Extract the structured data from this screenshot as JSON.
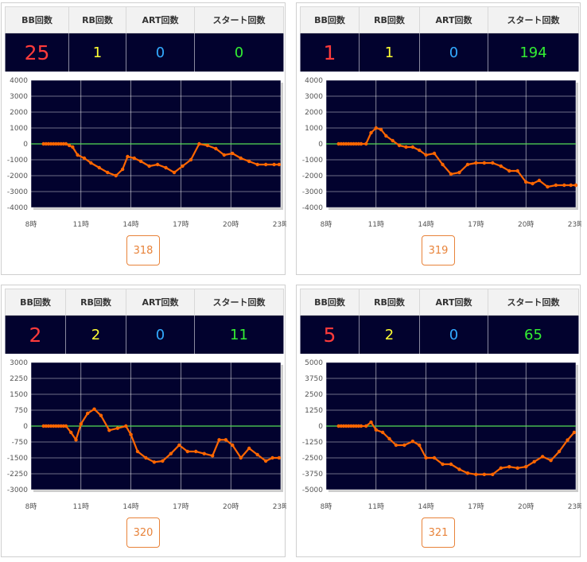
{
  "headers": {
    "bb": "BB回数",
    "rb": "RB回数",
    "art": "ART回数",
    "start": "スタート回数"
  },
  "x_tick_labels": [
    "8時",
    "11時",
    "14時",
    "17時",
    "20時",
    "23時"
  ],
  "colors": {
    "bb": "#ff3b3b",
    "rb": "#ffff33",
    "art": "#33aaff",
    "start": "#33ee33",
    "line": "#ff6600",
    "zero_line": "#55dd55",
    "plot_bg": "#02022e"
  },
  "machines": [
    {
      "number": "318",
      "bb": "25",
      "rb": "1",
      "art": "0",
      "start": "0"
    },
    {
      "number": "319",
      "bb": "1",
      "rb": "1",
      "art": "0",
      "start": "194"
    },
    {
      "number": "320",
      "bb": "2",
      "rb": "2",
      "art": "0",
      "start": "11"
    },
    {
      "number": "321",
      "bb": "5",
      "rb": "2",
      "art": "0",
      "start": "65"
    }
  ],
  "chart_data": [
    {
      "type": "line",
      "machine": "318",
      "xlim": [
        8,
        23
      ],
      "ylim": [
        -4000,
        4000
      ],
      "y_ticks": [
        4000,
        3000,
        2000,
        1000,
        0,
        -1000,
        -2000,
        -3000,
        -4000
      ],
      "x_ticks": [
        8,
        11,
        14,
        17,
        20,
        23
      ],
      "x": [
        8.75,
        8.9,
        9.05,
        9.2,
        9.35,
        9.5,
        9.65,
        9.8,
        9.95,
        10.1,
        10.3,
        10.5,
        10.8,
        11.2,
        11.6,
        12.1,
        12.6,
        13.1,
        13.5,
        13.8,
        14.2,
        14.6,
        15.1,
        15.6,
        16.1,
        16.6,
        17.1,
        17.6,
        18.1,
        18.6,
        19.1,
        19.6,
        20.1,
        20.6,
        21.1,
        21.6,
        22.1,
        22.6,
        22.9
      ],
      "values": [
        0,
        0,
        0,
        0,
        0,
        0,
        0,
        0,
        0,
        0,
        -100,
        -200,
        -700,
        -900,
        -1200,
        -1500,
        -1800,
        -2000,
        -1600,
        -800,
        -900,
        -1100,
        -1400,
        -1300,
        -1500,
        -1800,
        -1400,
        -1000,
        0,
        -100,
        -300,
        -700,
        -600,
        -900,
        -1100,
        -1300,
        -1300,
        -1300,
        -1300
      ]
    },
    {
      "type": "line",
      "machine": "319",
      "xlim": [
        8,
        23
      ],
      "ylim": [
        -4000,
        4000
      ],
      "y_ticks": [
        4000,
        3000,
        2000,
        1000,
        0,
        -1000,
        -2000,
        -3000,
        -4000
      ],
      "x_ticks": [
        8,
        11,
        14,
        17,
        20,
        23
      ],
      "x": [
        8.75,
        8.9,
        9.05,
        9.2,
        9.35,
        9.5,
        9.65,
        9.8,
        9.95,
        10.1,
        10.4,
        10.7,
        11.0,
        11.3,
        11.6,
        12.0,
        12.4,
        12.8,
        13.2,
        13.6,
        14.0,
        14.5,
        15.0,
        15.5,
        16.0,
        16.5,
        17.0,
        17.5,
        18.0,
        18.5,
        19.0,
        19.5,
        20.0,
        20.4,
        20.8,
        21.3,
        21.8,
        22.3,
        22.7,
        23.0
      ],
      "values": [
        0,
        0,
        0,
        0,
        0,
        0,
        0,
        0,
        0,
        0,
        0,
        700,
        1000,
        900,
        500,
        200,
        -100,
        -200,
        -200,
        -400,
        -700,
        -600,
        -1300,
        -1900,
        -1800,
        -1300,
        -1200,
        -1200,
        -1200,
        -1400,
        -1700,
        -1700,
        -2400,
        -2500,
        -2300,
        -2700,
        -2600,
        -2600,
        -2600,
        -2600
      ]
    },
    {
      "type": "line",
      "machine": "320",
      "xlim": [
        8,
        23
      ],
      "ylim": [
        -3000,
        3000
      ],
      "y_ticks": [
        3000,
        2250,
        1500,
        750,
        0,
        -750,
        -1500,
        -2250,
        -3000
      ],
      "x_ticks": [
        8,
        11,
        14,
        17,
        20,
        23
      ],
      "x": [
        8.75,
        8.9,
        9.05,
        9.2,
        9.35,
        9.5,
        9.65,
        9.8,
        9.95,
        10.1,
        10.4,
        10.7,
        11.0,
        11.4,
        11.8,
        12.2,
        12.7,
        13.2,
        13.7,
        14.0,
        14.4,
        14.9,
        15.4,
        15.9,
        16.4,
        16.9,
        17.4,
        17.9,
        18.4,
        18.9,
        19.3,
        19.7,
        20.1,
        20.6,
        21.1,
        21.6,
        22.1,
        22.5,
        22.9
      ],
      "values": [
        0,
        0,
        0,
        0,
        0,
        0,
        0,
        0,
        0,
        0,
        -300,
        -650,
        100,
        600,
        800,
        500,
        -200,
        -100,
        0,
        -400,
        -1200,
        -1500,
        -1700,
        -1650,
        -1300,
        -900,
        -1200,
        -1200,
        -1300,
        -1400,
        -650,
        -650,
        -900,
        -1500,
        -1050,
        -1350,
        -1650,
        -1500,
        -1500
      ]
    },
    {
      "type": "line",
      "machine": "321",
      "xlim": [
        8,
        23
      ],
      "ylim": [
        -5000,
        5000
      ],
      "y_ticks": [
        5000,
        3750,
        2500,
        1250,
        0,
        -1250,
        -2500,
        -3750,
        -5000
      ],
      "x_ticks": [
        8,
        11,
        14,
        17,
        20,
        23
      ],
      "x": [
        8.75,
        8.9,
        9.05,
        9.2,
        9.35,
        9.5,
        9.65,
        9.8,
        9.95,
        10.1,
        10.4,
        10.7,
        11.0,
        11.4,
        11.8,
        12.2,
        12.7,
        13.2,
        13.6,
        14.0,
        14.5,
        15.0,
        15.5,
        16.0,
        16.5,
        17.0,
        17.5,
        18.0,
        18.5,
        19.0,
        19.5,
        20.0,
        20.5,
        21.0,
        21.5,
        22.0,
        22.5,
        22.9
      ],
      "values": [
        0,
        0,
        0,
        0,
        0,
        0,
        0,
        0,
        0,
        0,
        0,
        300,
        -300,
        -500,
        -1000,
        -1500,
        -1500,
        -1200,
        -1500,
        -2500,
        -2500,
        -3000,
        -3000,
        -3400,
        -3700,
        -3800,
        -3800,
        -3800,
        -3300,
        -3200,
        -3300,
        -3200,
        -2800,
        -2400,
        -2700,
        -2000,
        -1100,
        -500
      ]
    }
  ]
}
